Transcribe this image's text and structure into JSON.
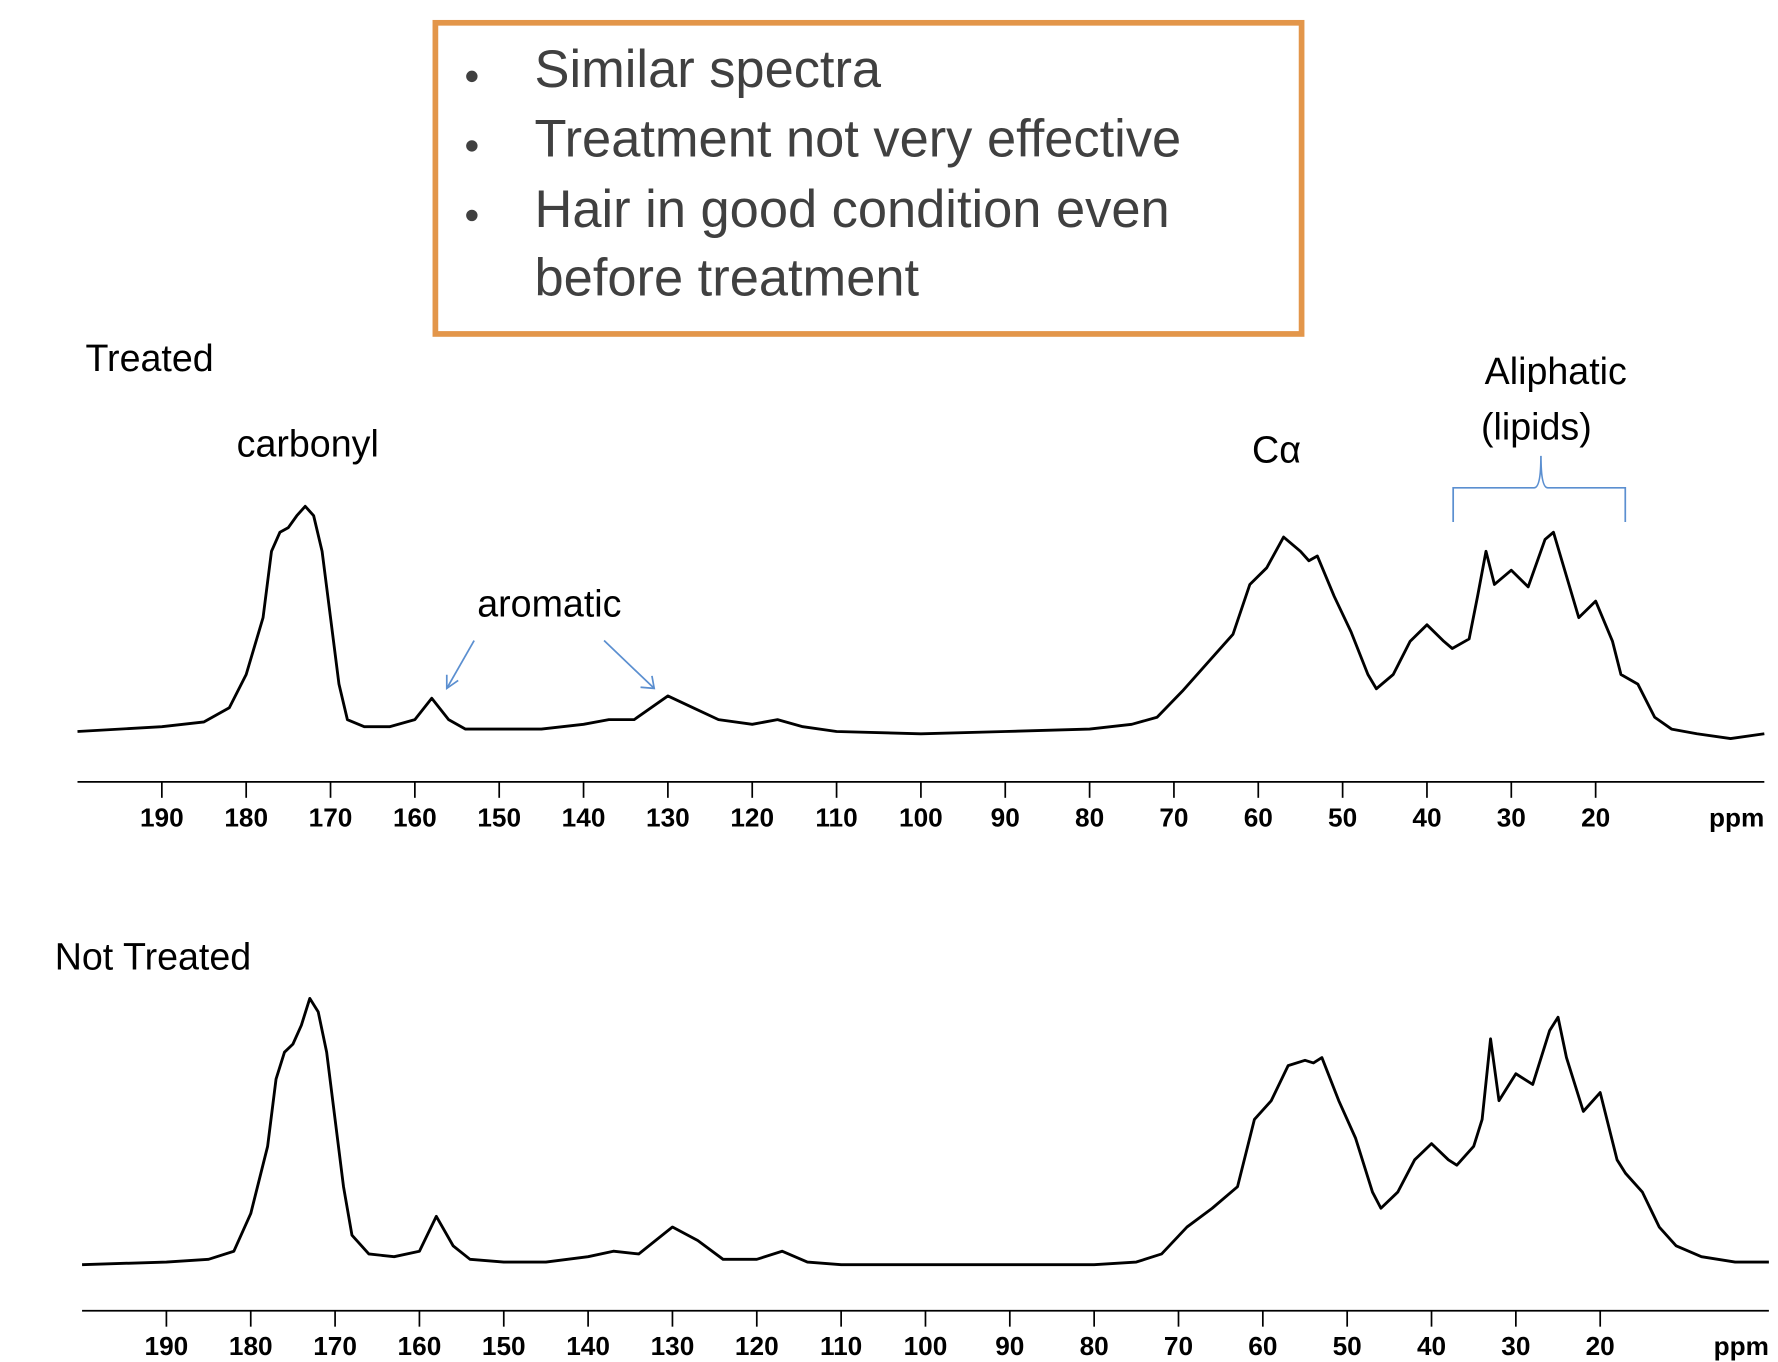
{
  "bullets": [
    "Similar spectra",
    "Treatment not very effective",
    "Hair in good condition even",
    "before treatment"
  ],
  "chart_data": [
    {
      "type": "line",
      "title": "Treated",
      "xlabel": "ppm",
      "annotations": [
        "carbonyl",
        "aromatic",
        "Cα",
        "Aliphatic",
        "(lipids)"
      ],
      "x": [
        200,
        190,
        185,
        182,
        180,
        178,
        177,
        176,
        175,
        174,
        173,
        172,
        171,
        170,
        169,
        168,
        166,
        163,
        160,
        158,
        156,
        154,
        150,
        145,
        140,
        137,
        134,
        130,
        127,
        124,
        120,
        117,
        114,
        110,
        100,
        90,
        80,
        75,
        72,
        69,
        66,
        63,
        61,
        59,
        57,
        55,
        54,
        53,
        51,
        49,
        47,
        46,
        44,
        42,
        40,
        38,
        37,
        35,
        34,
        33,
        32,
        30,
        28,
        26,
        25,
        24,
        22,
        20,
        18,
        17,
        15,
        13,
        11,
        8,
        4,
        0
      ],
      "series": [
        {
          "color": "#000000",
          "values": [
            3,
            5,
            7,
            13,
            27,
            51,
            79,
            87,
            89,
            94,
            98,
            94,
            79,
            51,
            23,
            8,
            5,
            5,
            8,
            17,
            8,
            4,
            4,
            4,
            6,
            8,
            8,
            18,
            13,
            8,
            6,
            8,
            5,
            3,
            2,
            3,
            4,
            6,
            9,
            20,
            32,
            44,
            65,
            72,
            85,
            79,
            75,
            77,
            60,
            45,
            27,
            21,
            27,
            41,
            48,
            41,
            38,
            42,
            60,
            79,
            65,
            71,
            64,
            84,
            87,
            75,
            51,
            58,
            41,
            27,
            23,
            9,
            4,
            2,
            0,
            2
          ]
        }
      ],
      "xlim": [
        200,
        0
      ],
      "xticks": [
        190,
        180,
        170,
        160,
        150,
        140,
        130,
        120,
        110,
        100,
        90,
        80,
        70,
        60,
        50,
        40,
        30,
        20
      ],
      "ylim": [
        0,
        100
      ]
    },
    {
      "type": "line",
      "title": "Not Treated",
      "xlabel": "ppm",
      "x": [
        200,
        190,
        185,
        182,
        180,
        178,
        177,
        176,
        175,
        174,
        173,
        172,
        171,
        170,
        169,
        168,
        166,
        163,
        160,
        158,
        156,
        154,
        150,
        145,
        140,
        137,
        134,
        130,
        127,
        124,
        120,
        117,
        114,
        110,
        100,
        90,
        80,
        75,
        72,
        69,
        66,
        63,
        61,
        59,
        57,
        55,
        54,
        53,
        51,
        49,
        47,
        46,
        44,
        42,
        40,
        38,
        37,
        35,
        34,
        33,
        32,
        30,
        28,
        26,
        25,
        24,
        22,
        20,
        18,
        17,
        15,
        13,
        11,
        8,
        4,
        0
      ],
      "series": [
        {
          "color": "#000000",
          "values": [
            1,
            2,
            3,
            6,
            20,
            45,
            70,
            80,
            83,
            90,
            100,
            95,
            80,
            55,
            30,
            12,
            5,
            4,
            6,
            19,
            8,
            3,
            2,
            2,
            4,
            6,
            5,
            15,
            10,
            3,
            3,
            6,
            2,
            1,
            1,
            1,
            1,
            2,
            5,
            15,
            22,
            30,
            55,
            62,
            75,
            77,
            76,
            78,
            62,
            48,
            28,
            22,
            28,
            40,
            46,
            40,
            38,
            45,
            55,
            85,
            62,
            72,
            68,
            88,
            93,
            78,
            58,
            65,
            40,
            35,
            28,
            15,
            8,
            4,
            2,
            2
          ]
        }
      ],
      "xlim": [
        200,
        0
      ],
      "xticks": [
        190,
        180,
        170,
        160,
        150,
        140,
        130,
        120,
        110,
        100,
        90,
        80,
        70,
        60,
        50,
        40,
        30,
        20
      ],
      "ylim": [
        0,
        100
      ]
    }
  ]
}
